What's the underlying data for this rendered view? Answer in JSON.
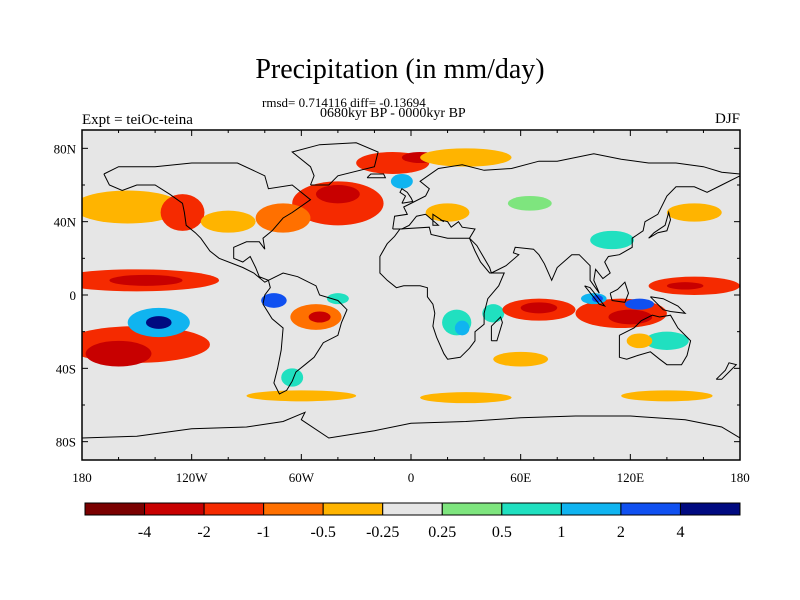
{
  "chart_data": {
    "type": "heatmap",
    "title": "Precipitation (in mm/day)",
    "subtitle_stats": "rmsd= 0.714116 diff= -0.13694",
    "subtitle_period": "0680kyr BP - 0000kyr BP",
    "left_label": "Expt = teiOc-teina",
    "right_label": "DJF",
    "x_ticks": [
      "180",
      "120W",
      "60W",
      "0",
      "60E",
      "120E",
      "180"
    ],
    "x_tick_values": [
      -180,
      -120,
      -60,
      0,
      60,
      120,
      180
    ],
    "y_ticks": [
      "80N",
      "40N",
      "0",
      "40S",
      "80S"
    ],
    "y_tick_values": [
      80,
      40,
      0,
      -40,
      -80
    ],
    "xlim": [
      -180,
      180
    ],
    "ylim": [
      -90,
      90
    ],
    "colorbar": {
      "labels": [
        "-4",
        "-2",
        "-1",
        "-0.5",
        "-0.25",
        "0.25",
        "0.5",
        "1",
        "2",
        "4"
      ],
      "colors": [
        "#7a0000",
        "#c80000",
        "#f52a00",
        "#ff7000",
        "#ffb400",
        "#e6e6e6",
        "#7ee57e",
        "#20e0c0",
        "#10b4f0",
        "#1050f0",
        "#000a80"
      ]
    },
    "regions": [
      {
        "name": "north-pacific-east",
        "lon": -155,
        "lat": 48,
        "rlon": 30,
        "rlat": 9,
        "value": -0.4
      },
      {
        "name": "north-pacific-coast",
        "lon": -125,
        "lat": 45,
        "rlon": 12,
        "rlat": 10,
        "value": -1.2
      },
      {
        "name": "tropical-pacific-band",
        "lon": -150,
        "lat": 8,
        "rlon": 45,
        "rlat": 6,
        "value": -1.5
      },
      {
        "name": "tropical-pacific-core",
        "lon": -145,
        "lat": 8,
        "rlon": 20,
        "rlat": 3,
        "value": -3
      },
      {
        "name": "south-pacific-spcz-east",
        "lon": -150,
        "lat": -27,
        "rlon": 40,
        "rlat": 10,
        "value": -1.2
      },
      {
        "name": "south-pacific-spcz-core",
        "lon": -160,
        "lat": -32,
        "rlon": 18,
        "rlat": 7,
        "value": -2.5
      },
      {
        "name": "south-pacific-wet",
        "lon": -138,
        "lat": -15,
        "rlon": 17,
        "rlat": 8,
        "value": 1.5
      },
      {
        "name": "south-pacific-wet-core",
        "lon": -138,
        "lat": -15,
        "rlon": 7,
        "rlat": 3.5,
        "value": 5
      },
      {
        "name": "amazon-wet",
        "lon": -75,
        "lat": -3,
        "rlon": 7,
        "rlat": 4,
        "value": 2
      },
      {
        "name": "south-america-dry",
        "lon": -52,
        "lat": -12,
        "rlon": 14,
        "rlat": 7,
        "value": -0.8
      },
      {
        "name": "south-america-dry-core",
        "lon": -50,
        "lat": -12,
        "rlon": 6,
        "rlat": 3,
        "value": -2.5
      },
      {
        "name": "brazil-wet",
        "lon": -40,
        "lat": -2,
        "rlon": 6,
        "rlat": 3,
        "value": 0.8
      },
      {
        "name": "north-atlantic-dry",
        "lon": -40,
        "lat": 50,
        "rlon": 25,
        "rlat": 12,
        "value": -1.2
      },
      {
        "name": "north-atlantic-core",
        "lon": -40,
        "lat": 55,
        "rlon": 12,
        "rlat": 5,
        "value": -2.5
      },
      {
        "name": "north-america-east",
        "lon": -70,
        "lat": 42,
        "rlon": 15,
        "rlat": 8,
        "value": -0.8
      },
      {
        "name": "north-america-sw",
        "lon": -100,
        "lat": 40,
        "rlon": 15,
        "rlat": 6,
        "value": -0.4
      },
      {
        "name": "greenland-dry",
        "lon": -10,
        "lat": 72,
        "rlon": 20,
        "rlat": 6,
        "value": -1.2
      },
      {
        "name": "greenland-core",
        "lon": 5,
        "lat": 75,
        "rlon": 10,
        "rlat": 3,
        "value": -3
      },
      {
        "name": "scandinavia-wet",
        "lon": -5,
        "lat": 62,
        "rlon": 6,
        "rlat": 4,
        "value": 1.5
      },
      {
        "name": "europe-dry",
        "lon": 20,
        "lat": 45,
        "rlon": 12,
        "rlat": 5,
        "value": -0.4
      },
      {
        "name": "arctic-siberia-dry",
        "lon": 30,
        "lat": 75,
        "rlon": 25,
        "rlat": 5,
        "value": -0.4
      },
      {
        "name": "siberia-wet",
        "lon": 65,
        "lat": 50,
        "rlon": 12,
        "rlat": 4,
        "value": 0.4
      },
      {
        "name": "africa-east-wet",
        "lon": 25,
        "lat": -15,
        "rlon": 8,
        "rlat": 7,
        "value": 0.8
      },
      {
        "name": "africa-east-core",
        "lon": 28,
        "lat": -18,
        "rlon": 4,
        "rlat": 4,
        "value": 1.5
      },
      {
        "name": "madagascar-wet",
        "lon": 45,
        "lat": -10,
        "rlon": 6,
        "rlat": 5,
        "value": 0.8
      },
      {
        "name": "indian-ocean-dry",
        "lon": 70,
        "lat": -8,
        "rlon": 20,
        "rlat": 6,
        "value": -1.2
      },
      {
        "name": "indian-ocean-core",
        "lon": 70,
        "lat": -7,
        "rlon": 10,
        "rlat": 3,
        "value": -3
      },
      {
        "name": "maritime-continent-dry",
        "lon": 115,
        "lat": -10,
        "rlon": 25,
        "rlat": 8,
        "value": -1.5
      },
      {
        "name": "maritime-continent-core",
        "lon": 120,
        "lat": -12,
        "rlon": 12,
        "rlat": 4,
        "value": -3
      },
      {
        "name": "west-pacific-dry",
        "lon": 155,
        "lat": 5,
        "rlon": 25,
        "rlat": 5,
        "value": -1.2
      },
      {
        "name": "west-pacific-core",
        "lon": 150,
        "lat": 5,
        "rlon": 10,
        "rlat": 2,
        "value": -3
      },
      {
        "name": "sumatra-wet",
        "lon": 100,
        "lat": -2,
        "rlon": 7,
        "rlat": 3,
        "value": 1.5
      },
      {
        "name": "sumatra-wet-core",
        "lon": 102,
        "lat": -2,
        "rlon": 3,
        "rlat": 2,
        "value": 3
      },
      {
        "name": "sunda-wet",
        "lon": 125,
        "lat": -5,
        "rlon": 8,
        "rlat": 3,
        "value": 2
      },
      {
        "name": "australia-wet",
        "lon": 140,
        "lat": -25,
        "rlon": 12,
        "rlat": 5,
        "value": 0.8
      },
      {
        "name": "australia-nw-dry",
        "lon": 125,
        "lat": -25,
        "rlon": 7,
        "rlat": 4,
        "value": -0.4
      },
      {
        "name": "south-indian-dry",
        "lon": 60,
        "lat": -35,
        "rlon": 15,
        "rlat": 4,
        "value": -0.4
      },
      {
        "name": "southern-ocean-dry",
        "lon": -60,
        "lat": -55,
        "rlon": 30,
        "rlat": 3,
        "value": -0.4
      },
      {
        "name": "southern-ocean-dry-2",
        "lon": 30,
        "lat": -56,
        "rlon": 25,
        "rlat": 3,
        "value": -0.4
      },
      {
        "name": "southern-ocean-dry-3",
        "lon": 140,
        "lat": -55,
        "rlon": 25,
        "rlat": 3,
        "value": -0.4
      },
      {
        "name": "patagonia-wet",
        "lon": -65,
        "lat": -45,
        "rlon": 6,
        "rlat": 5,
        "value": 0.6
      },
      {
        "name": "china-wet",
        "lon": 110,
        "lat": 30,
        "rlon": 12,
        "rlat": 5,
        "value": 0.6
      },
      {
        "name": "nw-pacific-dry",
        "lon": 155,
        "lat": 45,
        "rlon": 15,
        "rlat": 5,
        "value": -0.4
      }
    ]
  }
}
